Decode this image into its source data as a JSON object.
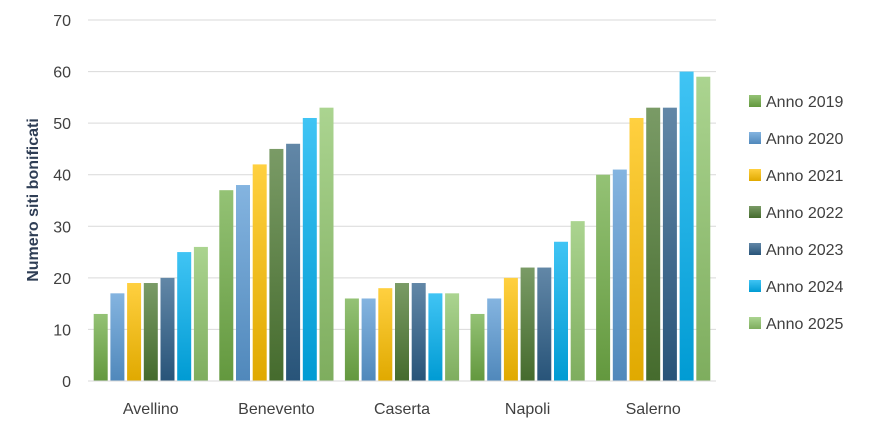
{
  "chart_data": {
    "type": "bar",
    "title": "",
    "xlabel": "",
    "ylabel": "Numero siti bonificati",
    "ylim": [
      0,
      70
    ],
    "yticks": [
      0,
      10,
      20,
      30,
      40,
      50,
      60,
      70
    ],
    "grid": true,
    "legend_position": "right",
    "categories": [
      "Avellino",
      "Benevento",
      "Caserta",
      "Napoli",
      "Salerno"
    ],
    "series": [
      {
        "name": "Anno 2019",
        "color": "#70ad47",
        "values": [
          13,
          37,
          16,
          13,
          40
        ]
      },
      {
        "name": "Anno 2020",
        "color": "#5b9bd5",
        "values": [
          17,
          38,
          16,
          16,
          41
        ]
      },
      {
        "name": "Anno 2021",
        "color": "#ffc000",
        "values": [
          19,
          42,
          18,
          20,
          51
        ]
      },
      {
        "name": "Anno 2022",
        "color": "#4e7a33",
        "values": [
          19,
          45,
          19,
          22,
          53
        ]
      },
      {
        "name": "Anno 2023",
        "color": "#2e5f8a",
        "values": [
          20,
          46,
          19,
          22,
          53
        ]
      },
      {
        "name": "Anno 2024",
        "color": "#00b0f0",
        "values": [
          25,
          51,
          17,
          27,
          60
        ]
      },
      {
        "name": "Anno 2025",
        "color": "#8fc56b",
        "values": [
          26,
          53,
          17,
          31,
          59
        ]
      }
    ]
  }
}
